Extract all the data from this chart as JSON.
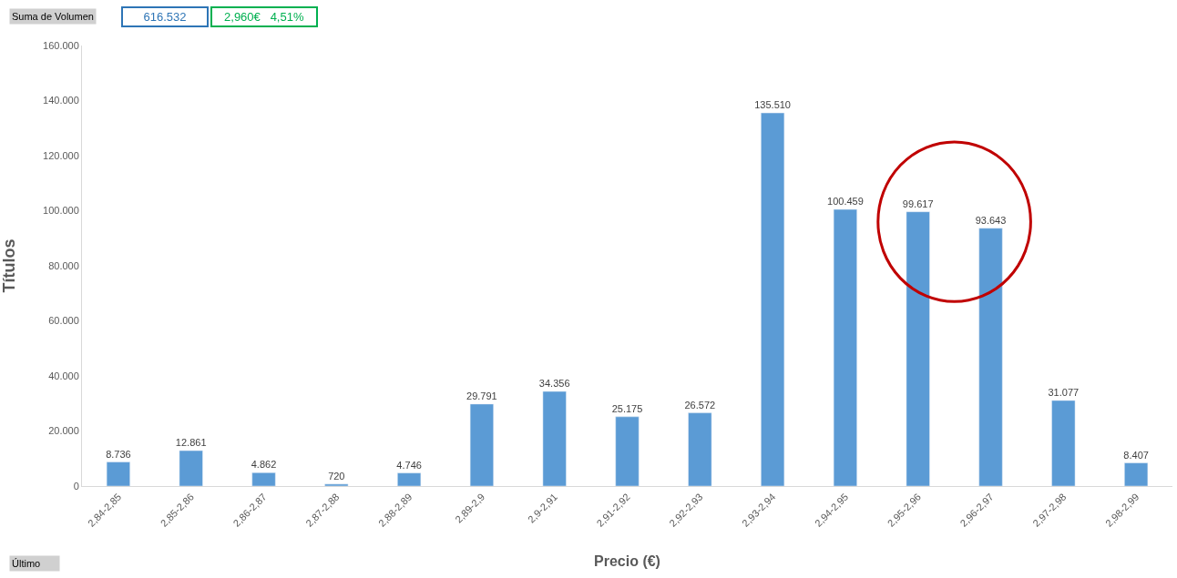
{
  "chart_data": {
    "type": "bar",
    "xlabel": "Precio (€)",
    "ylabel": "Títulos",
    "categories": [
      "2,84-2,85",
      "2,85-2,86",
      "2,86-2,87",
      "2,87-2,88",
      "2,88-2,89",
      "2,89-2,9",
      "2,9-2,91",
      "2,91-2,92",
      "2,92-2,93",
      "2,93-2,94",
      "2,94-2,95",
      "2,95-2,96",
      "2,96-2,97",
      "2,97-2,98",
      "2,98-2,99"
    ],
    "values": [
      8736,
      12861,
      4862,
      720,
      4746,
      29791,
      34356,
      25175,
      26572,
      135510,
      100459,
      99617,
      93643,
      31077,
      8407
    ],
    "value_labels": [
      "8.736",
      "12.861",
      "4.862",
      "720",
      "4.746",
      "29.791",
      "34.356",
      "25.175",
      "26.572",
      "135.510",
      "100.459",
      "99.617",
      "93.643",
      "31.077",
      "8.407"
    ],
    "color": "#5b9bd5",
    "ylim": [
      0,
      160000
    ],
    "yticks": [
      {
        "value": 0,
        "label": "0"
      },
      {
        "value": 20000,
        "label": "20.000"
      },
      {
        "value": 40000,
        "label": "40.000"
      },
      {
        "value": 60000,
        "label": "60.000"
      },
      {
        "value": 80000,
        "label": "80.000"
      },
      {
        "value": 100000,
        "label": "100.000"
      },
      {
        "value": 120000,
        "label": "120.000"
      },
      {
        "value": 140000,
        "label": "140.000"
      },
      {
        "value": 160000,
        "label": "160.000"
      }
    ],
    "grid": false,
    "annotations": [
      "Suma de Volumen",
      "616.532",
      "2,960€   4,51%",
      "Último"
    ]
  }
}
